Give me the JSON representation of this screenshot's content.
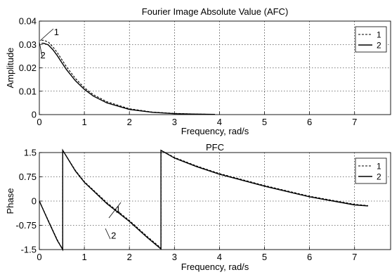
{
  "chart_data": [
    {
      "type": "line",
      "title": "Fourier Image Absolute Value (AFC)",
      "xlabel": "Frequency, rad/s",
      "ylabel": "Amplitude",
      "xlim": [
        0,
        7.8
      ],
      "ylim": [
        0,
        0.04
      ],
      "grid": true,
      "legend_position": "top-right",
      "xticks": [
        0,
        1,
        2,
        3,
        4,
        5,
        6,
        7
      ],
      "xtick_labels": [
        "0",
        "1",
        "2",
        "3",
        "4",
        "5",
        "6",
        "7"
      ],
      "yticks": [
        0,
        0.01,
        0.02,
        0.03,
        0.04
      ],
      "ytick_labels": [
        "0",
        "0.01",
        "0.02",
        "0.03",
        "0.04"
      ],
      "series": [
        {
          "name": "1",
          "style": "dashed",
          "x": [
            0.05,
            0.1,
            0.2,
            0.3,
            0.4,
            0.5,
            0.6,
            0.8,
            1.0,
            1.2,
            1.5,
            2.0,
            2.5,
            3.0,
            3.5,
            3.9
          ],
          "y": [
            0.0318,
            0.0318,
            0.031,
            0.029,
            0.0265,
            0.0235,
            0.0205,
            0.0155,
            0.0115,
            0.0085,
            0.0055,
            0.0025,
            0.0011,
            0.0005,
            0.0002,
            0.0001
          ]
        },
        {
          "name": "2",
          "style": "solid",
          "x": [
            0.05,
            0.1,
            0.2,
            0.3,
            0.4,
            0.5,
            0.6,
            0.8,
            1.0,
            1.2,
            1.5,
            2.0,
            2.5,
            3.0,
            3.5,
            3.9
          ],
          "y": [
            0.0305,
            0.0305,
            0.0298,
            0.0278,
            0.0252,
            0.0222,
            0.0193,
            0.0145,
            0.0108,
            0.0079,
            0.005,
            0.0022,
            0.001,
            0.0004,
            0.0002,
            0.0001
          ]
        }
      ],
      "annotations": [
        {
          "text": "1",
          "x": 0.38,
          "y": 0.0355
        },
        {
          "text": "2",
          "x": 0.08,
          "y": 0.0255
        }
      ]
    },
    {
      "type": "line",
      "title": "PFC",
      "xlabel": "Frequency, rad/s",
      "ylabel": "Phase",
      "xlim": [
        0,
        7.8
      ],
      "ylim": [
        -1.5,
        1.5
      ],
      "grid": true,
      "legend_position": "top-right",
      "xticks": [
        0,
        1,
        2,
        3,
        4,
        5,
        6,
        7
      ],
      "xtick_labels": [
        "0",
        "1",
        "2",
        "3",
        "4",
        "5",
        "6",
        "7"
      ],
      "yticks": [
        -1.5,
        -0.75,
        0,
        0.75,
        1.5
      ],
      "ytick_labels": [
        "-1.5",
        "-0.75",
        "0",
        "0.75",
        "1.5"
      ],
      "series": [
        {
          "name": "1",
          "style": "dashed",
          "x": [
            0.0,
            0.2,
            0.4,
            0.52,
            0.52,
            0.8,
            1.0,
            1.5,
            2.0,
            2.4,
            2.7,
            2.7,
            3.0,
            3.5,
            4.0,
            5.0,
            6.0,
            7.0,
            7.3
          ],
          "y": [
            0.0,
            -0.6,
            -1.2,
            -1.5,
            1.57,
            0.95,
            0.6,
            -0.05,
            -0.6,
            -1.1,
            -1.45,
            1.57,
            1.35,
            1.08,
            0.85,
            0.48,
            0.15,
            -0.1,
            -0.14
          ]
        },
        {
          "name": "2",
          "style": "solid",
          "x": [
            0.0,
            0.2,
            0.4,
            0.52,
            0.52,
            0.8,
            1.0,
            1.5,
            2.0,
            2.4,
            2.7,
            2.7,
            3.0,
            3.5,
            4.0,
            5.0,
            6.0,
            7.0,
            7.3
          ],
          "y": [
            0.0,
            -0.62,
            -1.22,
            -1.5,
            1.57,
            0.93,
            0.58,
            -0.08,
            -0.63,
            -1.13,
            -1.48,
            1.57,
            1.33,
            1.06,
            0.83,
            0.46,
            0.13,
            -0.12,
            -0.15
          ]
        }
      ],
      "annotations": [
        {
          "text": "1",
          "x": 1.75,
          "y": -0.25
        },
        {
          "text": "2",
          "x": 1.65,
          "y": -1.05
        }
      ]
    }
  ]
}
